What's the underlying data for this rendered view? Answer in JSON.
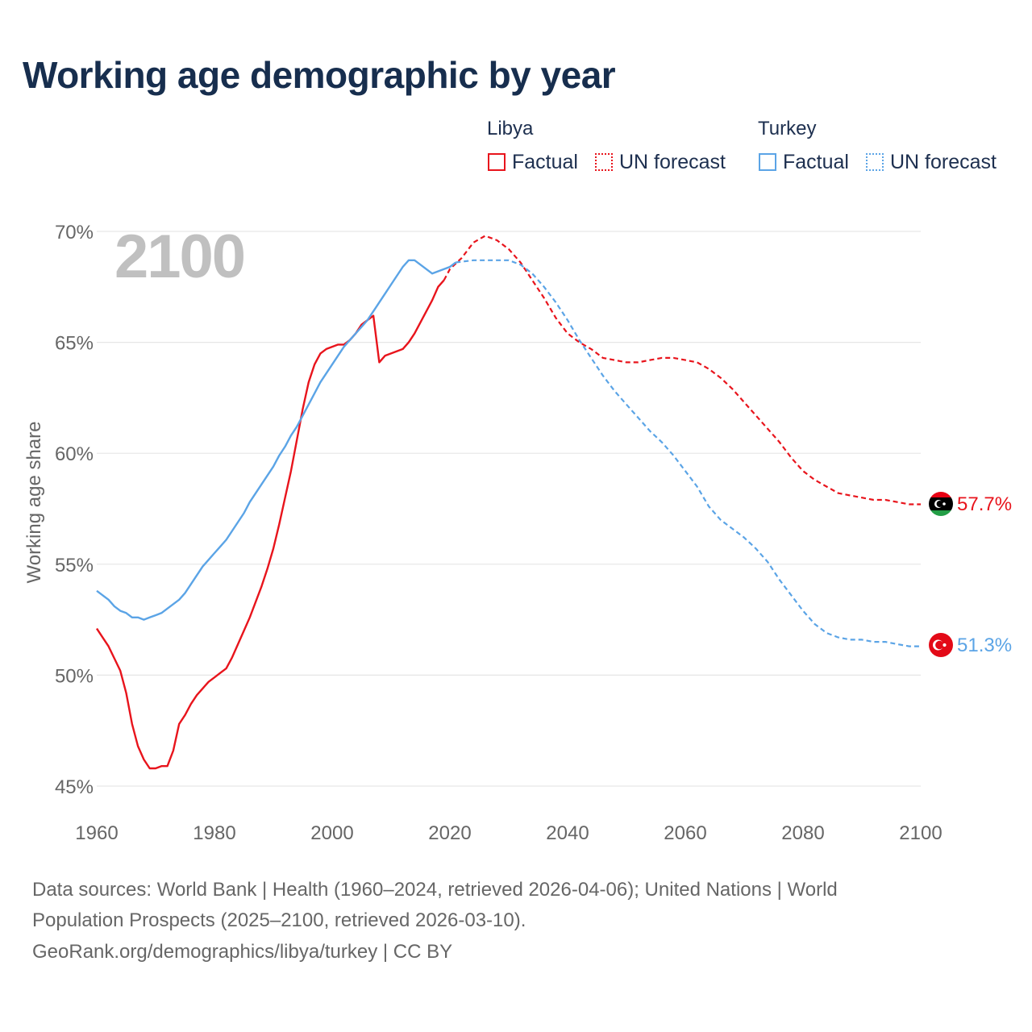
{
  "title": "Working age demographic by year",
  "legend": {
    "libya": {
      "name": "Libya",
      "factual": "Factual",
      "forecast": "UN forecast",
      "color": "#e8141c"
    },
    "turkey": {
      "name": "Turkey",
      "factual": "Factual",
      "forecast": "UN forecast",
      "color": "#5ba4e6"
    }
  },
  "chart_data": {
    "type": "line",
    "year_label": "2100",
    "ylabel": "Working age share",
    "xlim": [
      1960,
      2100
    ],
    "ylim": [
      45,
      70
    ],
    "xticks": [
      "1960",
      "1980",
      "2000",
      "2020",
      "2040",
      "2060",
      "2080",
      "2100"
    ],
    "yticks": [
      "45%",
      "50%",
      "55%",
      "60%",
      "65%",
      "70%"
    ],
    "grid": true,
    "series": [
      {
        "name": "Libya",
        "color": "#e8141c",
        "end_label": "57.7%",
        "flag": "libya-flag",
        "factual": [
          [
            1960,
            52.1
          ],
          [
            1962,
            51.3
          ],
          [
            1964,
            50.2
          ],
          [
            1965,
            49.2
          ],
          [
            1966,
            47.8
          ],
          [
            1967,
            46.8
          ],
          [
            1968,
            46.2
          ],
          [
            1969,
            45.8
          ],
          [
            1970,
            45.8
          ],
          [
            1971,
            45.9
          ],
          [
            1972,
            45.9
          ],
          [
            1973,
            46.6
          ],
          [
            1974,
            47.8
          ],
          [
            1975,
            48.2
          ],
          [
            1976,
            48.7
          ],
          [
            1977,
            49.1
          ],
          [
            1978,
            49.4
          ],
          [
            1979,
            49.7
          ],
          [
            1980,
            49.9
          ],
          [
            1981,
            50.1
          ],
          [
            1982,
            50.3
          ],
          [
            1983,
            50.8
          ],
          [
            1984,
            51.4
          ],
          [
            1985,
            52.0
          ],
          [
            1986,
            52.6
          ],
          [
            1987,
            53.3
          ],
          [
            1988,
            54.0
          ],
          [
            1989,
            54.8
          ],
          [
            1990,
            55.7
          ],
          [
            1991,
            56.8
          ],
          [
            1992,
            58.0
          ],
          [
            1993,
            59.2
          ],
          [
            1994,
            60.6
          ],
          [
            1995,
            62.0
          ],
          [
            1996,
            63.2
          ],
          [
            1997,
            64.0
          ],
          [
            1998,
            64.5
          ],
          [
            1999,
            64.7
          ],
          [
            2000,
            64.8
          ],
          [
            2001,
            64.9
          ],
          [
            2002,
            64.9
          ],
          [
            2003,
            65.1
          ],
          [
            2004,
            65.4
          ],
          [
            2005,
            65.8
          ],
          [
            2006,
            66.0
          ],
          [
            2007,
            66.2
          ],
          [
            2008,
            64.1
          ],
          [
            2009,
            64.4
          ],
          [
            2010,
            64.5
          ],
          [
            2011,
            64.6
          ],
          [
            2012,
            64.7
          ],
          [
            2013,
            65.0
          ],
          [
            2014,
            65.4
          ],
          [
            2015,
            65.9
          ],
          [
            2016,
            66.4
          ],
          [
            2017,
            66.9
          ],
          [
            2018,
            67.5
          ],
          [
            2019,
            67.8
          ]
        ],
        "forecast": [
          [
            2019,
            67.8
          ],
          [
            2020,
            68.3
          ],
          [
            2022,
            68.8
          ],
          [
            2024,
            69.5
          ],
          [
            2026,
            69.8
          ],
          [
            2028,
            69.6
          ],
          [
            2030,
            69.2
          ],
          [
            2032,
            68.6
          ],
          [
            2034,
            67.8
          ],
          [
            2036,
            67.0
          ],
          [
            2038,
            66.1
          ],
          [
            2040,
            65.4
          ],
          [
            2042,
            65.0
          ],
          [
            2044,
            64.7
          ],
          [
            2046,
            64.3
          ],
          [
            2048,
            64.2
          ],
          [
            2050,
            64.1
          ],
          [
            2052,
            64.1
          ],
          [
            2054,
            64.2
          ],
          [
            2056,
            64.3
          ],
          [
            2058,
            64.3
          ],
          [
            2060,
            64.2
          ],
          [
            2062,
            64.1
          ],
          [
            2064,
            63.8
          ],
          [
            2066,
            63.4
          ],
          [
            2068,
            62.9
          ],
          [
            2070,
            62.3
          ],
          [
            2072,
            61.7
          ],
          [
            2074,
            61.1
          ],
          [
            2076,
            60.5
          ],
          [
            2078,
            59.8
          ],
          [
            2080,
            59.2
          ],
          [
            2082,
            58.8
          ],
          [
            2084,
            58.5
          ],
          [
            2086,
            58.2
          ],
          [
            2088,
            58.1
          ],
          [
            2090,
            58.0
          ],
          [
            2092,
            57.9
          ],
          [
            2094,
            57.9
          ],
          [
            2096,
            57.8
          ],
          [
            2098,
            57.7
          ],
          [
            2100,
            57.7
          ]
        ]
      },
      {
        "name": "Turkey",
        "color": "#5ba4e6",
        "end_label": "51.3%",
        "flag": "turkey-flag",
        "factual": [
          [
            1960,
            53.8
          ],
          [
            1961,
            53.6
          ],
          [
            1962,
            53.4
          ],
          [
            1963,
            53.1
          ],
          [
            1964,
            52.9
          ],
          [
            1965,
            52.8
          ],
          [
            1966,
            52.6
          ],
          [
            1967,
            52.6
          ],
          [
            1968,
            52.5
          ],
          [
            1969,
            52.6
          ],
          [
            1970,
            52.7
          ],
          [
            1971,
            52.8
          ],
          [
            1972,
            53.0
          ],
          [
            1973,
            53.2
          ],
          [
            1974,
            53.4
          ],
          [
            1975,
            53.7
          ],
          [
            1976,
            54.1
          ],
          [
            1977,
            54.5
          ],
          [
            1978,
            54.9
          ],
          [
            1979,
            55.2
          ],
          [
            1980,
            55.5
          ],
          [
            1981,
            55.8
          ],
          [
            1982,
            56.1
          ],
          [
            1983,
            56.5
          ],
          [
            1984,
            56.9
          ],
          [
            1985,
            57.3
          ],
          [
            1986,
            57.8
          ],
          [
            1987,
            58.2
          ],
          [
            1988,
            58.6
          ],
          [
            1989,
            59.0
          ],
          [
            1990,
            59.4
          ],
          [
            1991,
            59.9
          ],
          [
            1992,
            60.3
          ],
          [
            1993,
            60.8
          ],
          [
            1994,
            61.2
          ],
          [
            1995,
            61.7
          ],
          [
            1996,
            62.2
          ],
          [
            1997,
            62.7
          ],
          [
            1998,
            63.2
          ],
          [
            1999,
            63.6
          ],
          [
            2000,
            64.0
          ],
          [
            2001,
            64.4
          ],
          [
            2002,
            64.8
          ],
          [
            2003,
            65.1
          ],
          [
            2004,
            65.4
          ],
          [
            2005,
            65.7
          ],
          [
            2006,
            66.0
          ],
          [
            2007,
            66.4
          ],
          [
            2008,
            66.8
          ],
          [
            2009,
            67.2
          ],
          [
            2010,
            67.6
          ],
          [
            2011,
            68.0
          ],
          [
            2012,
            68.4
          ],
          [
            2013,
            68.7
          ],
          [
            2014,
            68.7
          ],
          [
            2015,
            68.5
          ],
          [
            2016,
            68.3
          ],
          [
            2017,
            68.1
          ],
          [
            2018,
            68.2
          ],
          [
            2019,
            68.3
          ],
          [
            2020,
            68.4
          ],
          [
            2021,
            68.6
          ]
        ],
        "forecast": [
          [
            2021,
            68.6
          ],
          [
            2024,
            68.7
          ],
          [
            2027,
            68.7
          ],
          [
            2030,
            68.7
          ],
          [
            2032,
            68.5
          ],
          [
            2034,
            68.1
          ],
          [
            2036,
            67.5
          ],
          [
            2038,
            66.8
          ],
          [
            2040,
            66.0
          ],
          [
            2042,
            65.1
          ],
          [
            2044,
            64.3
          ],
          [
            2046,
            63.5
          ],
          [
            2048,
            62.8
          ],
          [
            2050,
            62.2
          ],
          [
            2052,
            61.6
          ],
          [
            2054,
            61.0
          ],
          [
            2056,
            60.5
          ],
          [
            2058,
            59.9
          ],
          [
            2060,
            59.2
          ],
          [
            2062,
            58.5
          ],
          [
            2064,
            57.6
          ],
          [
            2066,
            57.0
          ],
          [
            2068,
            56.6
          ],
          [
            2070,
            56.2
          ],
          [
            2072,
            55.7
          ],
          [
            2074,
            55.1
          ],
          [
            2076,
            54.3
          ],
          [
            2078,
            53.6
          ],
          [
            2080,
            52.9
          ],
          [
            2082,
            52.3
          ],
          [
            2084,
            51.9
          ],
          [
            2086,
            51.7
          ],
          [
            2088,
            51.6
          ],
          [
            2090,
            51.6
          ],
          [
            2092,
            51.5
          ],
          [
            2094,
            51.5
          ],
          [
            2096,
            51.4
          ],
          [
            2098,
            51.3
          ],
          [
            2100,
            51.3
          ]
        ]
      }
    ]
  },
  "footer": {
    "line1": "Data sources: World Bank | Health (1960–2024, retrieved 2026-04-06); United Nations | World",
    "line2": "Population Prospects (2025–2100, retrieved 2026-03-10).",
    "line3": "GeoRank.org/demographics/libya/turkey | CC BY"
  }
}
